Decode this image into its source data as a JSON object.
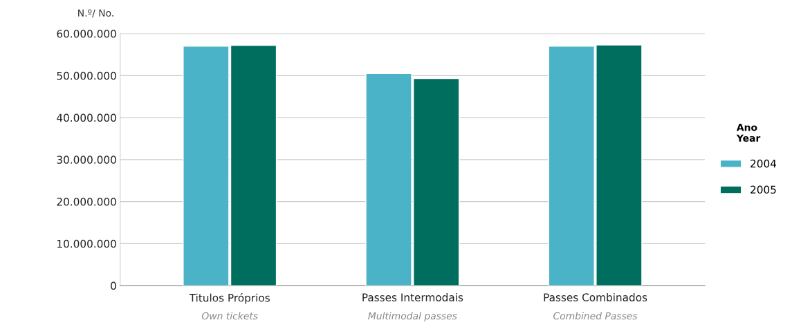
{
  "chart_data": {
    "type": "bar",
    "ylabel": "N.º/ No.",
    "categories": [
      "Titulos Próprios\nOwn tickets",
      "Passes Intermodais\nMultimodal passes",
      "Passes Combinados\nCombined Passes"
    ],
    "series": [
      {
        "name": "2004",
        "color": "#4bb3c8",
        "values": [
          57000000,
          50500000,
          57000000
        ]
      },
      {
        "name": "2005",
        "color": "#006e5f",
        "values": [
          57200000,
          49300000,
          57300000
        ]
      }
    ],
    "legend_title": "Ano\nYear",
    "legend": "right",
    "grid": "y",
    "ylim": [
      0,
      60000000
    ],
    "yticks": [
      {
        "value": 0,
        "label": "0"
      },
      {
        "value": 10000000,
        "label": "10.000.000"
      },
      {
        "value": 20000000,
        "label": "20.000.000"
      },
      {
        "value": 30000000,
        "label": "30.000.000"
      },
      {
        "value": 40000000,
        "label": "40.000.000"
      },
      {
        "value": 50000000,
        "label": "50.000.000"
      },
      {
        "value": 60000000,
        "label": "60.000.000"
      }
    ]
  }
}
